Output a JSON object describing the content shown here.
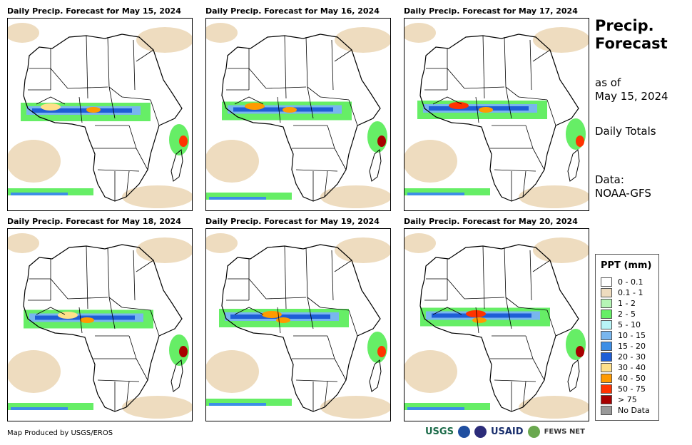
{
  "panels": [
    {
      "title": "Daily Precip. Forecast for May 15, 2024"
    },
    {
      "title": "Daily Precip. Forecast for May 16, 2024"
    },
    {
      "title": "Daily Precip. Forecast for May 17, 2024"
    },
    {
      "title": "Daily Precip. Forecast for May 18, 2024"
    },
    {
      "title": "Daily Precip. Forecast for May 19, 2024"
    },
    {
      "title": "Daily Precip. Forecast for May 20, 2024"
    }
  ],
  "side": {
    "title_line1": "Precip.",
    "title_line2": "Forecast",
    "asof_line1": "as of",
    "asof_line2": "May 15, 2024",
    "totals": "Daily Totals",
    "data_line1": "Data:",
    "data_line2": "NOAA-GFS"
  },
  "legend": {
    "title": "PPT (mm)",
    "items": [
      {
        "label": "0 - 0.1",
        "color": "#ffffff"
      },
      {
        "label": "0.1 - 1",
        "color": "#eedcbf"
      },
      {
        "label": "1 - 2",
        "color": "#b5f5b5"
      },
      {
        "label": "2 - 5",
        "color": "#66ee66"
      },
      {
        "label": "5 - 10",
        "color": "#b8f4f6"
      },
      {
        "label": "10 - 15",
        "color": "#78b6ee"
      },
      {
        "label": "15 - 20",
        "color": "#3d8ee6"
      },
      {
        "label": "20 - 30",
        "color": "#1e5ed6"
      },
      {
        "label": "30 - 40",
        "color": "#ffe08a"
      },
      {
        "label": "40 - 50",
        "color": "#ff9a00"
      },
      {
        "label": "50 - 75",
        "color": "#ff3300"
      },
      {
        "label": "> 75",
        "color": "#a80000"
      },
      {
        "label": "No Data",
        "color": "#999999"
      }
    ]
  },
  "footer": {
    "credit": "Map Produced by USGS/EROS",
    "logo_usgs": "USGS",
    "logo_usaid": "USAID",
    "logo_fews": "FEWS NET"
  }
}
